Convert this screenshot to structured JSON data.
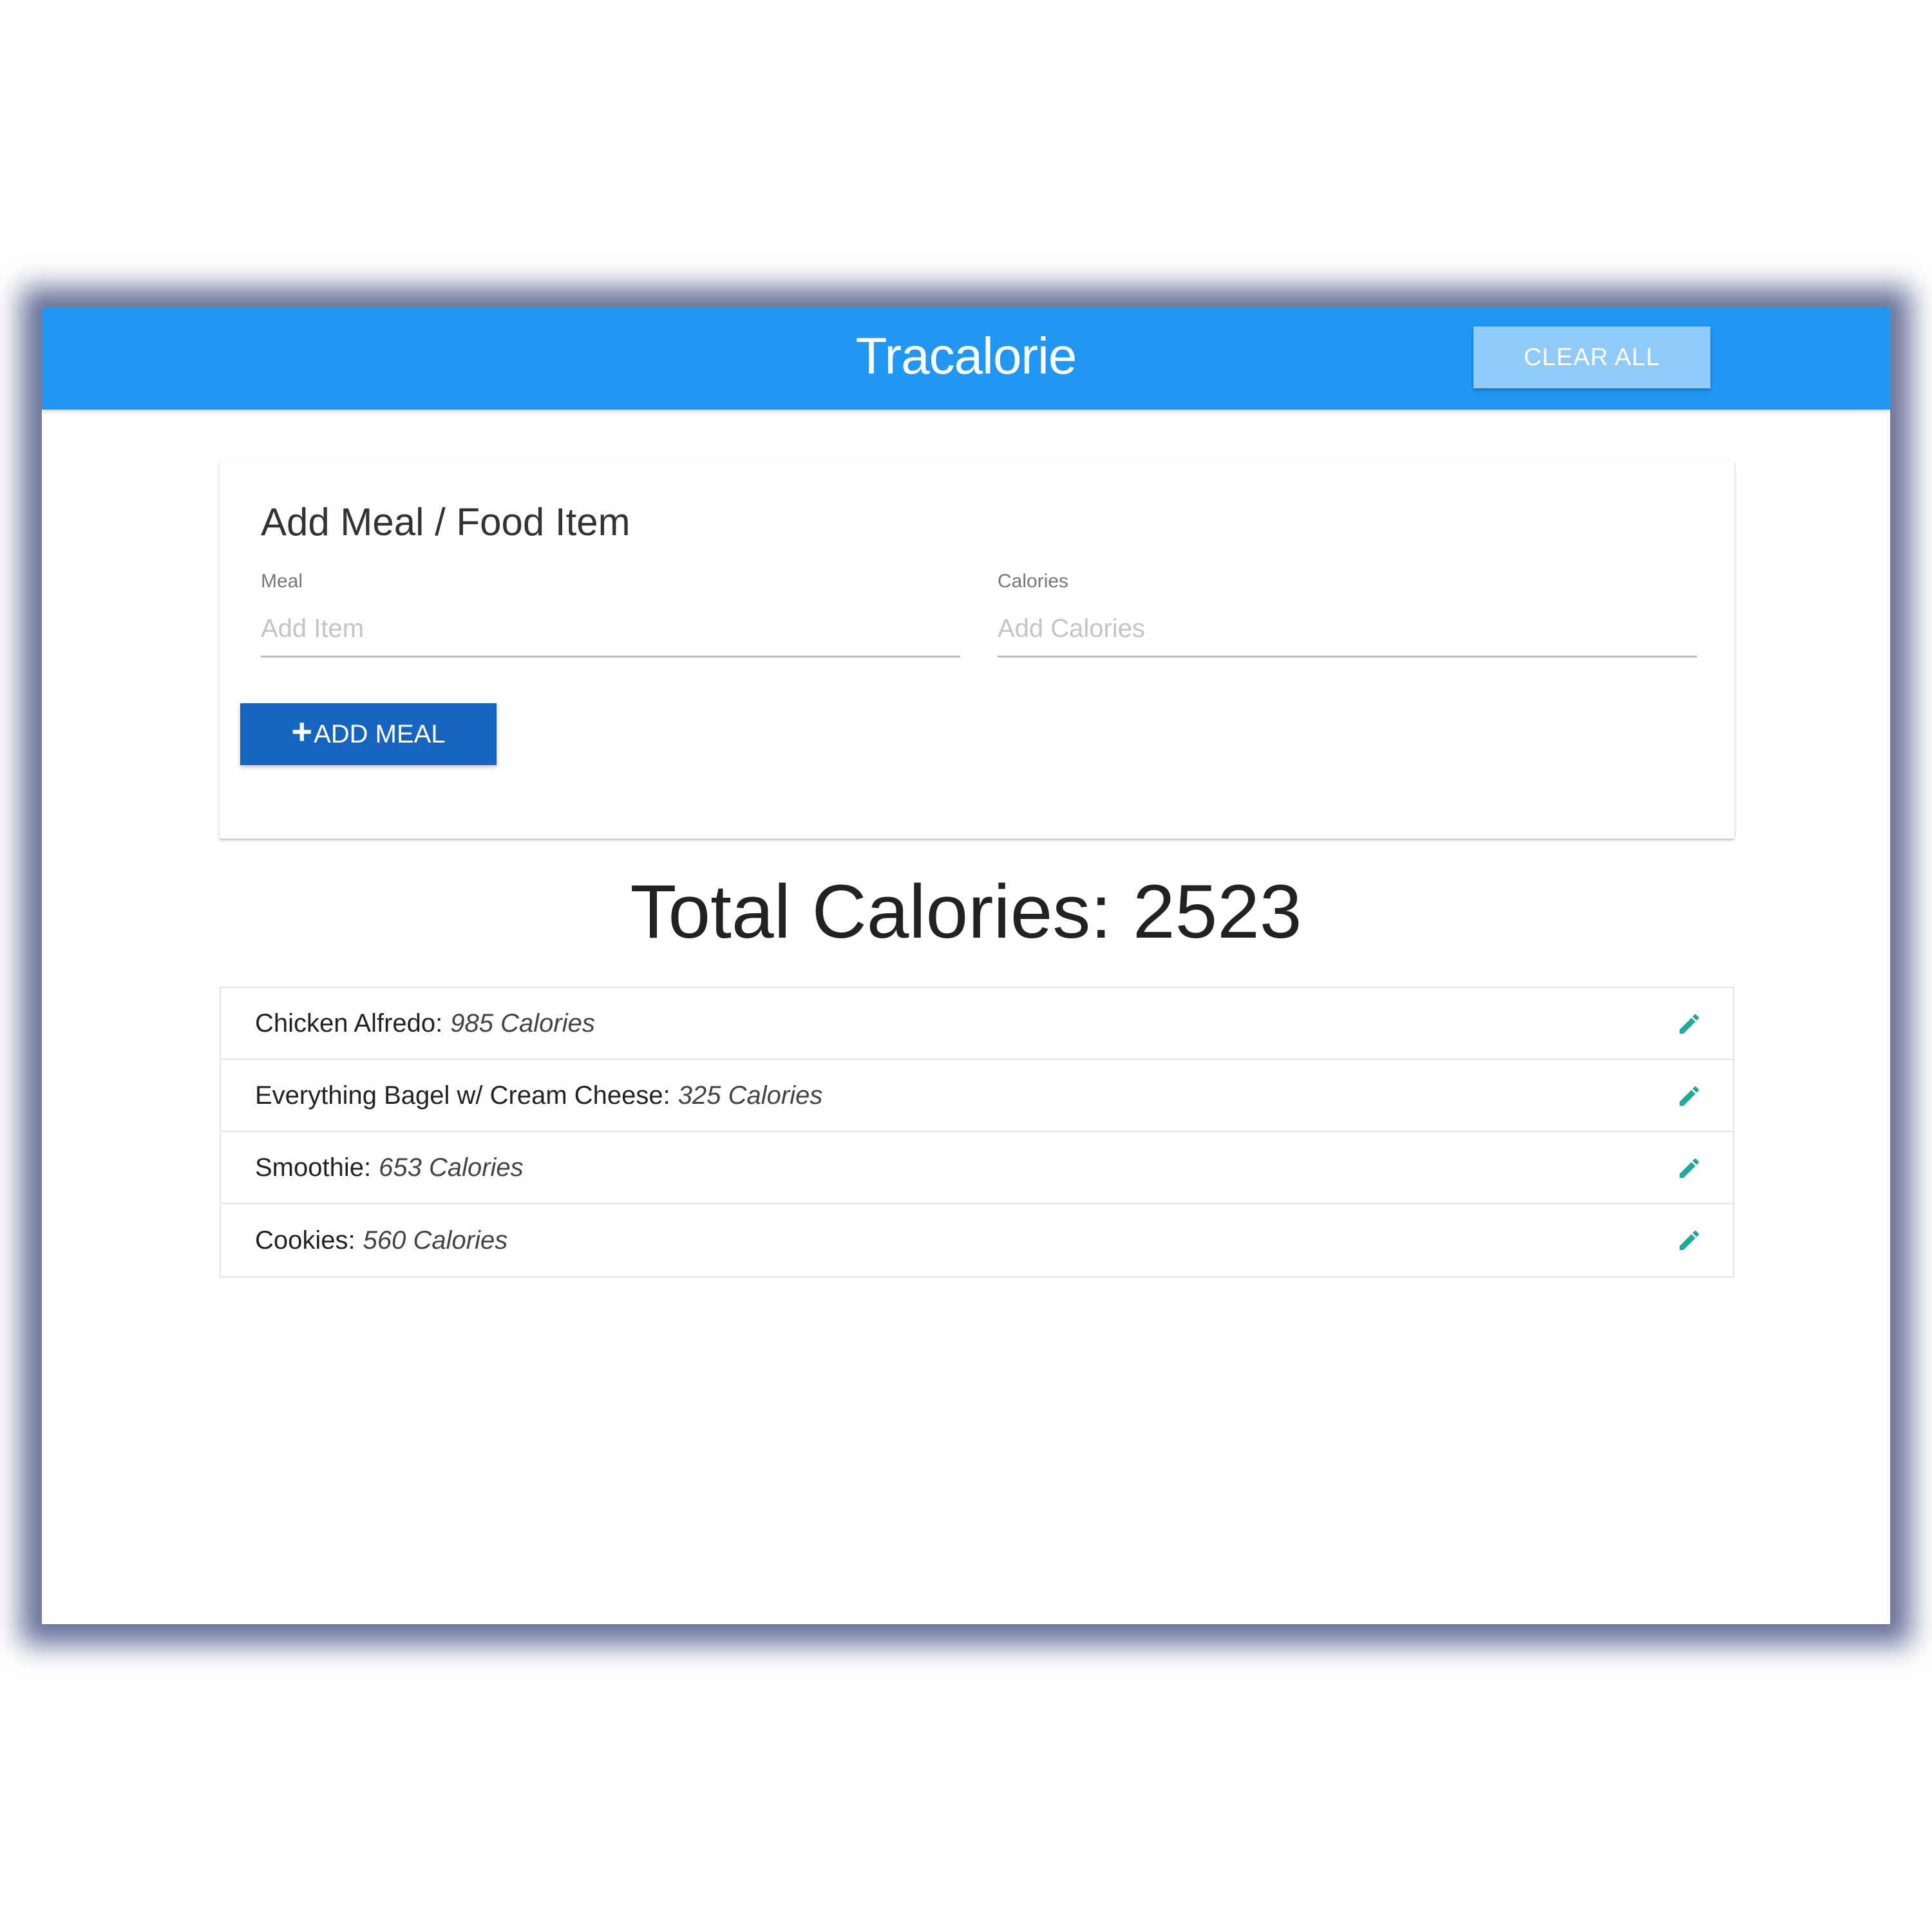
{
  "header": {
    "title": "Tracalorie",
    "clear_all_label": "CLEAR ALL",
    "background_color": "#2196f3"
  },
  "form": {
    "title": "Add Meal / Food Item",
    "meal_label": "Meal",
    "meal_placeholder": "Add Item",
    "calories_label": "Calories",
    "calories_placeholder": "Add Calories",
    "add_button_label": "ADD MEAL",
    "add_button_icon": "plus-icon",
    "add_button_color": "#1565c0"
  },
  "total": {
    "text": "Total Calories: 2523"
  },
  "meals": [
    {
      "name": "Chicken Alfredo:",
      "calories": "985 Calories",
      "icon": "pencil-icon"
    },
    {
      "name": "Everything Bagel w/ Cream Cheese:",
      "calories": "325 Calories",
      "icon": "pencil-icon"
    },
    {
      "name": "Smoothie:",
      "calories": "653 Calories",
      "icon": "pencil-icon"
    },
    {
      "name": "Cookies:",
      "calories": "560 Calories",
      "icon": "pencil-icon"
    }
  ],
  "colors": {
    "edit_icon": "#26a69a"
  }
}
